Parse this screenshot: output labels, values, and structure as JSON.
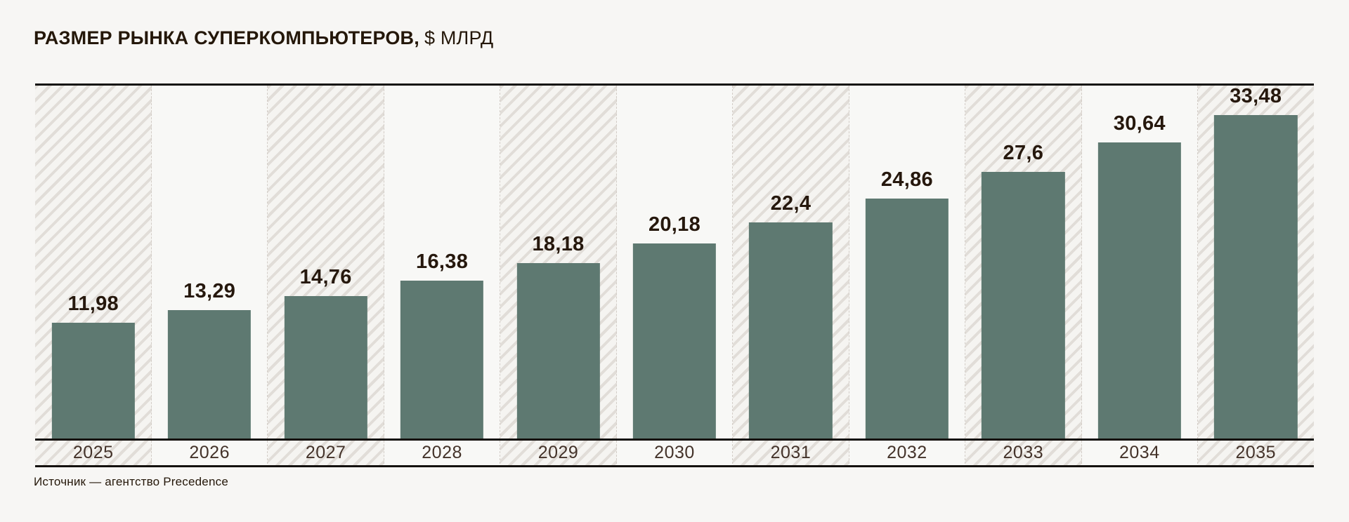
{
  "title": {
    "bold": "РАЗМЕР РЫНКА СУПЕРКОМПЬЮТЕРОВ,",
    "unit": "$ МЛРД"
  },
  "source": "Источник — агентство Precedence",
  "chart_data": {
    "type": "bar",
    "title": "РАЗМЕР РЫНКА СУПЕРКОМПЬЮТЕРОВ, $ МЛРД",
    "categories": [
      "2025",
      "2026",
      "2027",
      "2028",
      "2029",
      "2030",
      "2031",
      "2032",
      "2033",
      "2034",
      "2035"
    ],
    "values": [
      11.98,
      13.29,
      14.76,
      16.38,
      18.18,
      20.18,
      22.4,
      24.86,
      27.6,
      30.64,
      33.48
    ],
    "value_labels": [
      "11,98",
      "13,29",
      "14,76",
      "16,38",
      "18,18",
      "20,18",
      "22,4",
      "24,86",
      "27,6",
      "30,64",
      "33,48"
    ],
    "xlabel": "",
    "ylabel": "$ млрд",
    "ylim": [
      0,
      33.48
    ],
    "grid": false,
    "legend": "none",
    "decimal_separator": ",",
    "hatched_columns_pattern": "every odd column (2025, 2027, 2029, 2031, 2033, 2035) has diagonal hatching",
    "colors": {
      "bar": "#5e7971",
      "title_text": "#241709",
      "value_text": "#26180d",
      "year_text": "#44332a",
      "rule": "#14110e",
      "background": "#f7f6f4",
      "column_plain": "#f8f8f6",
      "hatch_base": "#f5f4f1",
      "hatch_stripe": "#e1ddd8",
      "separator": "#d3cdc7"
    }
  }
}
